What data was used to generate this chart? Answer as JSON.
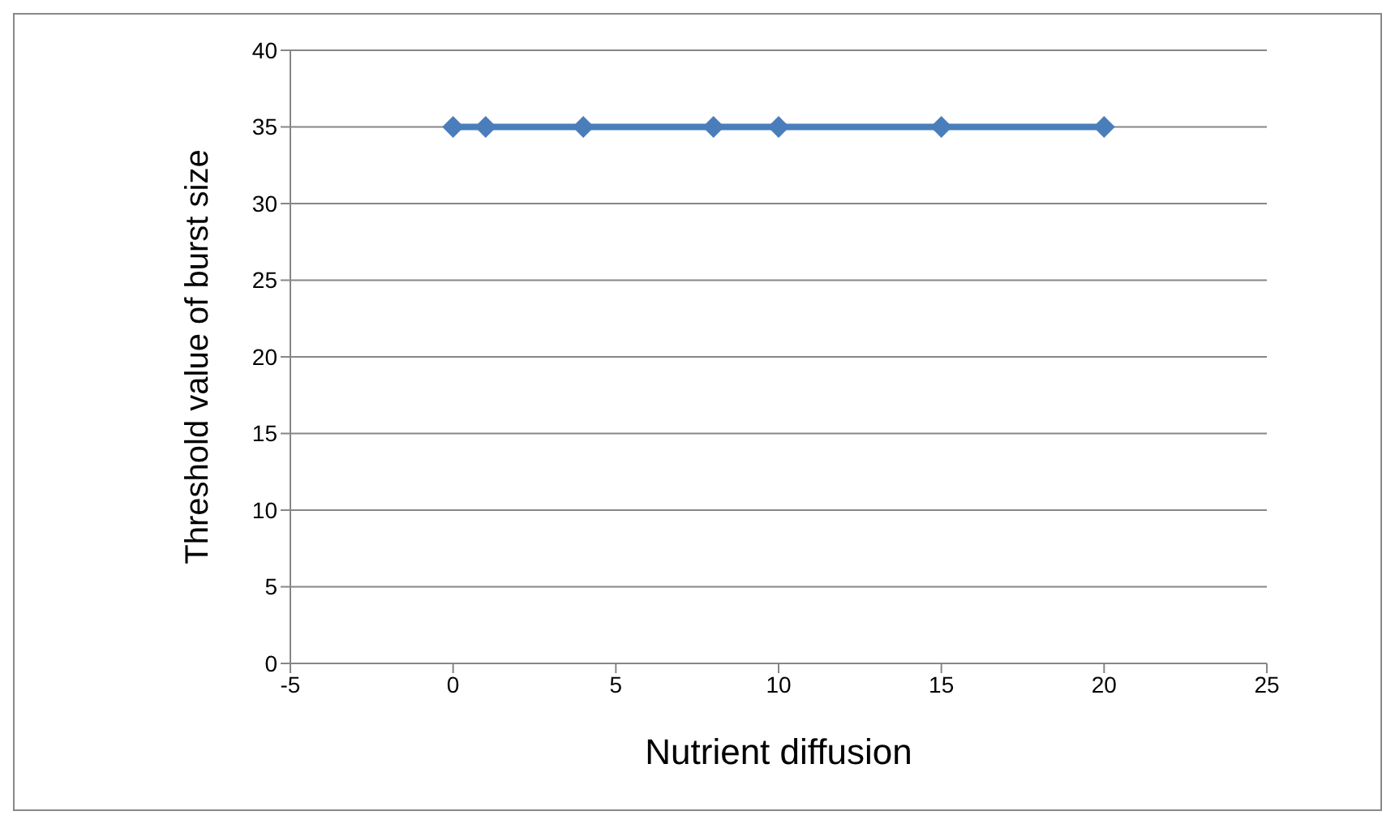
{
  "chart_data": {
    "type": "line",
    "xlabel": "Nutrient diffusion",
    "ylabel": "Threshold value of burst size",
    "x": [
      0,
      1,
      4,
      8,
      10,
      15,
      20
    ],
    "series": [
      {
        "color": "#4a7ebb",
        "values": [
          35,
          35,
          35,
          35,
          35,
          35,
          35
        ]
      }
    ],
    "xlim": [
      -5,
      25
    ],
    "xticks": [
      -5,
      0,
      5,
      10,
      15,
      20,
      25
    ],
    "ylim": [
      0,
      40
    ],
    "yticks": [
      0,
      5,
      10,
      15,
      20,
      25,
      30,
      35,
      40
    ],
    "grid": "y",
    "legend": false,
    "marker": "diamond",
    "line_style": "solid"
  }
}
